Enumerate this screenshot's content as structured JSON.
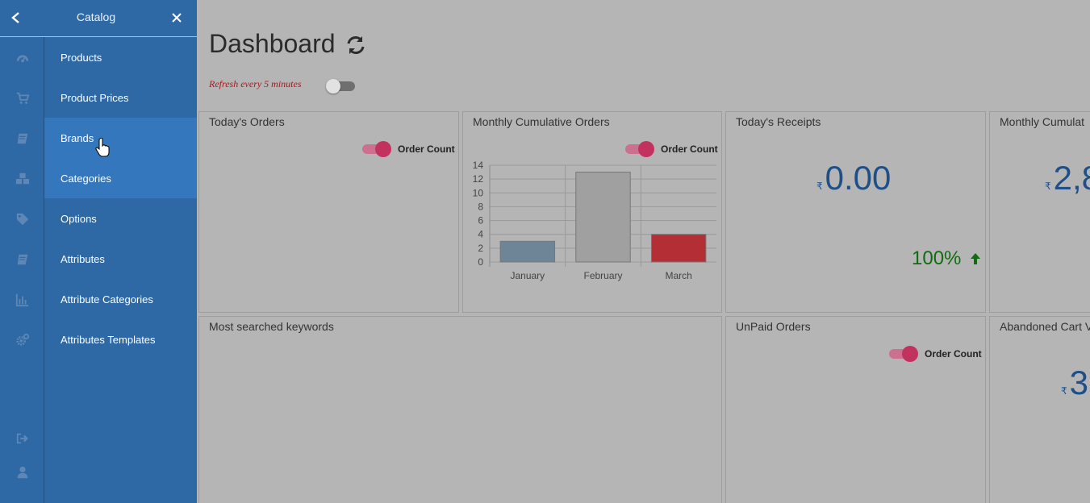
{
  "panel": {
    "title": "Catalog",
    "items": [
      {
        "label": "Products",
        "active": false
      },
      {
        "label": "Product Prices",
        "active": false
      },
      {
        "label": "Brands",
        "active": true
      },
      {
        "label": "Categories",
        "active": true
      },
      {
        "label": "Options",
        "active": false
      },
      {
        "label": "Attributes",
        "active": false
      },
      {
        "label": "Attribute Categories",
        "active": false
      },
      {
        "label": "Attributes Templates",
        "active": false
      }
    ]
  },
  "rail": {
    "icons": [
      "dashboard-icon",
      "cart-icon",
      "book-icon",
      "cubes-icon",
      "tags-icon",
      "book-icon",
      "bar-chart-icon",
      "gears-icon",
      "sign-out-icon",
      "user-icon"
    ]
  },
  "dashboard": {
    "title": "Dashboard",
    "refresh_text": "Refresh every 5 minutes",
    "refresh_enabled": false,
    "cards": {
      "todays_orders": {
        "title": "Today's Orders",
        "toggle_label": "Order Count"
      },
      "monthly_orders": {
        "title": "Monthly Cumulative Orders",
        "toggle_label": "Order Count"
      },
      "todays_receipts": {
        "title": "Today's Receipts",
        "currency": "₹",
        "amount": "0.00",
        "change": "100%",
        "change_color": "#126b12"
      },
      "monthly_cumulative": {
        "title": "Monthly Cumulat",
        "currency": "₹",
        "amount": "2,8"
      },
      "keywords": {
        "title": "Most searched keywords"
      },
      "unpaid_orders": {
        "title": "UnPaid Orders",
        "toggle_label": "Order Count"
      },
      "abandoned_cart": {
        "title": "Abandoned Cart V",
        "currency": "₹",
        "amount": "3"
      }
    }
  },
  "colors": {
    "sidebar": "#2e69a5",
    "sidebar_active": "#3577bc",
    "toggle_on": "#c3325f",
    "amount": "#1f4f87"
  },
  "chart_data": {
    "type": "bar",
    "categories": [
      "January",
      "February",
      "March"
    ],
    "values": [
      3,
      13,
      4
    ],
    "colors": [
      "#6e8597",
      "#a0a0a0",
      "#b32f35"
    ],
    "ylim": [
      0,
      14
    ],
    "yticks": [
      0,
      2,
      4,
      6,
      8,
      10,
      12,
      14
    ],
    "grid": true
  }
}
